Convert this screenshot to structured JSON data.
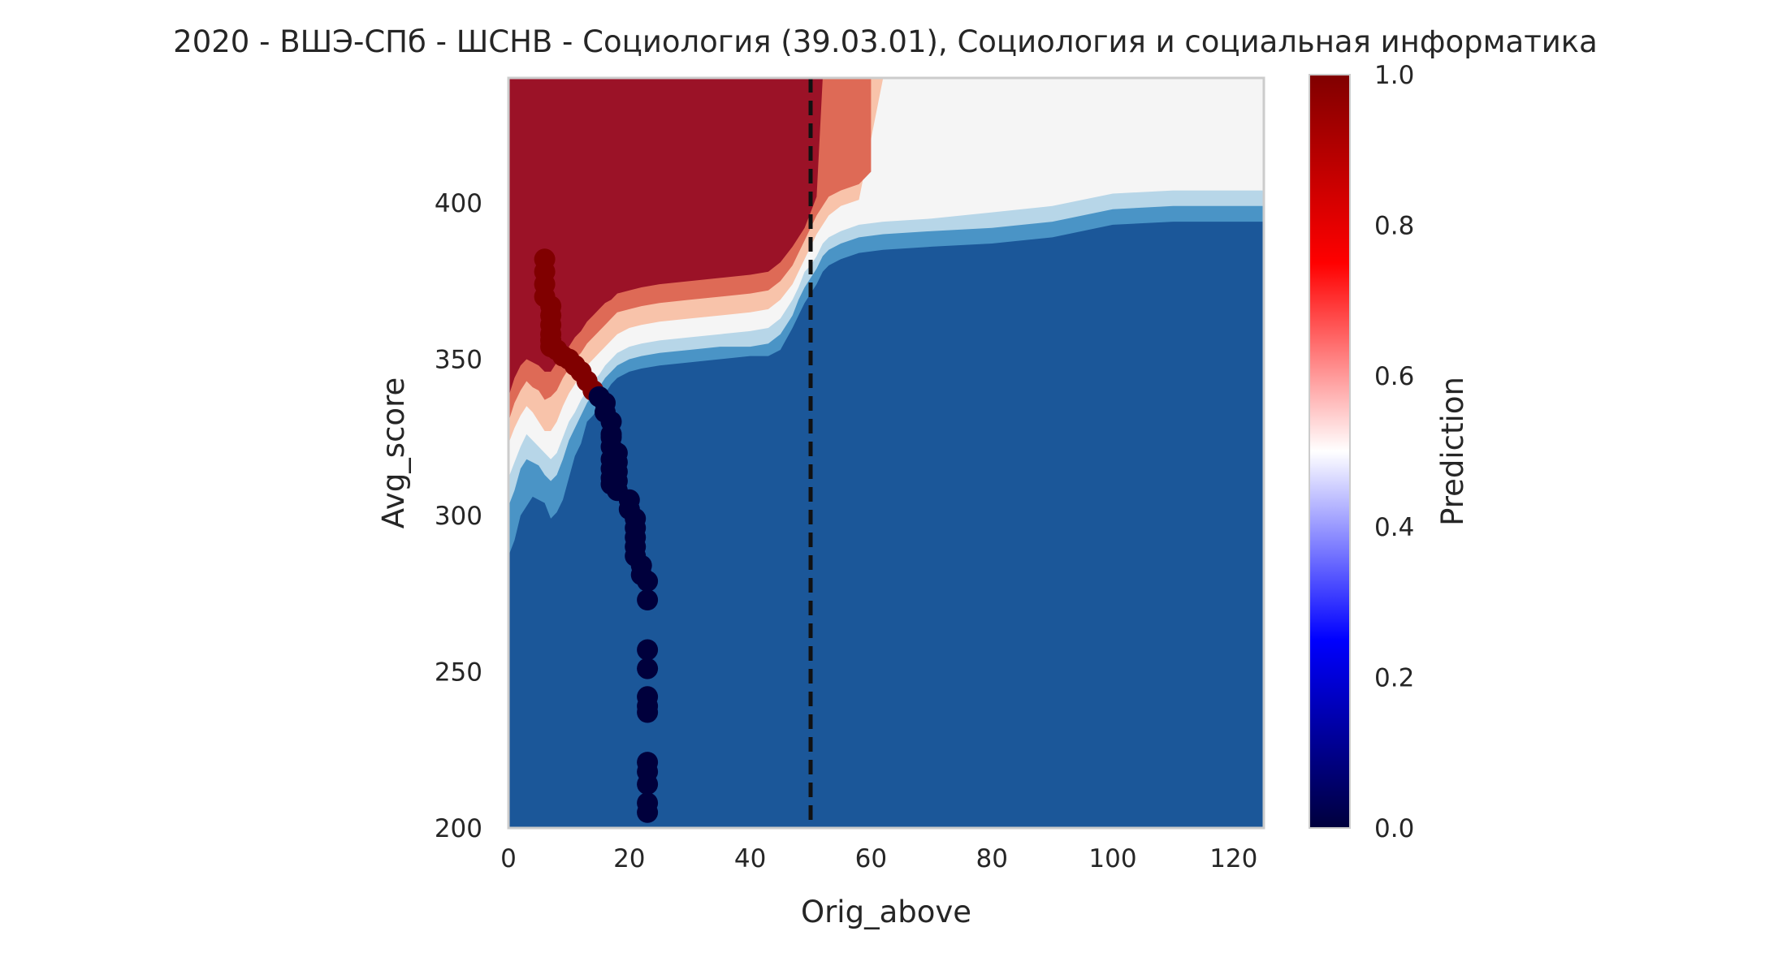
{
  "chart_data": {
    "type": "heatmap",
    "title": "2020 - ВШЭ-СПб - ШСНВ - Социология (39.03.01), Социология и социальная информатика",
    "xlabel": "Orig_above",
    "ylabel": "Avg_score",
    "xlim": [
      0,
      125
    ],
    "ylim": [
      200,
      440
    ],
    "xticks": [
      "0",
      "20",
      "40",
      "60",
      "80",
      "100",
      "120"
    ],
    "yticks": [
      "200",
      "250",
      "300",
      "350",
      "400"
    ],
    "grid": false,
    "reference_line": {
      "axis": "x",
      "value": 50,
      "style": "dashed",
      "color": "#111111"
    },
    "contour": {
      "colors": [
        "#1b5799",
        "#4a94c6",
        "#b7d6e8",
        "#f5f5f5",
        "#f8c3aa",
        "#de6a56",
        "#9b1227"
      ],
      "boundaries": [
        [
          [
            0,
            287
          ],
          [
            1,
            292
          ],
          [
            2,
            300
          ],
          [
            3,
            303
          ],
          [
            4,
            306
          ],
          [
            5,
            305
          ],
          [
            6,
            304
          ],
          [
            7,
            299
          ],
          [
            8,
            301
          ],
          [
            9,
            305
          ],
          [
            10,
            312
          ],
          [
            11,
            319
          ],
          [
            12,
            323
          ],
          [
            13,
            330
          ],
          [
            14,
            332
          ],
          [
            15,
            335
          ],
          [
            16,
            339
          ],
          [
            17,
            342
          ],
          [
            18,
            344
          ],
          [
            20,
            346
          ],
          [
            22,
            347
          ],
          [
            25,
            348
          ],
          [
            30,
            349
          ],
          [
            35,
            350
          ],
          [
            40,
            351
          ],
          [
            43,
            351
          ],
          [
            45,
            353
          ],
          [
            47,
            360
          ],
          [
            48,
            364
          ],
          [
            49,
            368
          ],
          [
            50,
            371
          ],
          [
            51,
            374
          ],
          [
            52,
            378
          ],
          [
            53,
            380
          ],
          [
            55,
            382
          ],
          [
            58,
            384
          ],
          [
            62,
            385
          ],
          [
            70,
            386
          ],
          [
            80,
            387
          ],
          [
            90,
            389
          ],
          [
            100,
            393
          ],
          [
            110,
            394
          ],
          [
            125,
            394
          ]
        ],
        [
          [
            0,
            303
          ],
          [
            1,
            308
          ],
          [
            2,
            315
          ],
          [
            3,
            318
          ],
          [
            4,
            317
          ],
          [
            5,
            316
          ],
          [
            6,
            313
          ],
          [
            7,
            311
          ],
          [
            8,
            313
          ],
          [
            9,
            318
          ],
          [
            10,
            324
          ],
          [
            11,
            328
          ],
          [
            12,
            332
          ],
          [
            13,
            336
          ],
          [
            14,
            339
          ],
          [
            15,
            341
          ],
          [
            16,
            344
          ],
          [
            17,
            346
          ],
          [
            18,
            348
          ],
          [
            20,
            350
          ],
          [
            22,
            351
          ],
          [
            25,
            352
          ],
          [
            30,
            353
          ],
          [
            35,
            354
          ],
          [
            40,
            354
          ],
          [
            43,
            355
          ],
          [
            45,
            358
          ],
          [
            47,
            364
          ],
          [
            48,
            369
          ],
          [
            49,
            373
          ],
          [
            50,
            376
          ],
          [
            51,
            379
          ],
          [
            52,
            383
          ],
          [
            53,
            385
          ],
          [
            55,
            387
          ],
          [
            58,
            389
          ],
          [
            62,
            390
          ],
          [
            70,
            391
          ],
          [
            80,
            392
          ],
          [
            90,
            394
          ],
          [
            100,
            398
          ],
          [
            110,
            399
          ],
          [
            125,
            399
          ]
        ],
        [
          [
            0,
            312
          ],
          [
            1,
            317
          ],
          [
            2,
            322
          ],
          [
            3,
            326
          ],
          [
            4,
            324
          ],
          [
            5,
            322
          ],
          [
            6,
            320
          ],
          [
            7,
            318
          ],
          [
            8,
            320
          ],
          [
            9,
            325
          ],
          [
            10,
            330
          ],
          [
            11,
            333
          ],
          [
            12,
            337
          ],
          [
            13,
            340
          ],
          [
            14,
            343
          ],
          [
            15,
            345
          ],
          [
            16,
            348
          ],
          [
            17,
            350
          ],
          [
            18,
            352
          ],
          [
            20,
            354
          ],
          [
            22,
            355
          ],
          [
            25,
            356
          ],
          [
            30,
            357
          ],
          [
            35,
            358
          ],
          [
            40,
            359
          ],
          [
            43,
            360
          ],
          [
            45,
            363
          ],
          [
            47,
            369
          ],
          [
            48,
            373
          ],
          [
            49,
            378
          ],
          [
            50,
            380
          ],
          [
            51,
            383
          ],
          [
            52,
            387
          ],
          [
            53,
            389
          ],
          [
            55,
            391
          ],
          [
            58,
            393
          ],
          [
            62,
            394
          ],
          [
            70,
            395
          ],
          [
            80,
            397
          ],
          [
            90,
            399
          ],
          [
            100,
            403
          ],
          [
            110,
            404
          ],
          [
            125,
            404
          ]
        ],
        [
          [
            0,
            323
          ],
          [
            1,
            328
          ],
          [
            2,
            332
          ],
          [
            3,
            335
          ],
          [
            4,
            333
          ],
          [
            5,
            330
          ],
          [
            6,
            327
          ],
          [
            7,
            327
          ],
          [
            8,
            330
          ],
          [
            9,
            335
          ],
          [
            10,
            339
          ],
          [
            11,
            342
          ],
          [
            12,
            345
          ],
          [
            13,
            348
          ],
          [
            14,
            350
          ],
          [
            15,
            352
          ],
          [
            16,
            354
          ],
          [
            17,
            356
          ],
          [
            18,
            358
          ],
          [
            20,
            360
          ],
          [
            22,
            361
          ],
          [
            25,
            362
          ],
          [
            30,
            363
          ],
          [
            35,
            364
          ],
          [
            40,
            365
          ],
          [
            43,
            366
          ],
          [
            45,
            369
          ],
          [
            47,
            374
          ],
          [
            48,
            378
          ],
          [
            49,
            382
          ],
          [
            50,
            386
          ],
          [
            51,
            390
          ],
          [
            52,
            393
          ],
          [
            53,
            396
          ],
          [
            55,
            399
          ],
          [
            58,
            401
          ],
          [
            62,
            440
          ]
        ],
        [
          [
            0,
            330
          ],
          [
            1,
            336
          ],
          [
            2,
            340
          ],
          [
            3,
            343
          ],
          [
            4,
            341
          ],
          [
            5,
            340
          ],
          [
            6,
            337
          ],
          [
            7,
            338
          ],
          [
            8,
            340
          ],
          [
            9,
            344
          ],
          [
            10,
            347
          ],
          [
            11,
            350
          ],
          [
            12,
            352
          ],
          [
            13,
            355
          ],
          [
            14,
            357
          ],
          [
            15,
            359
          ],
          [
            16,
            361
          ],
          [
            17,
            363
          ],
          [
            18,
            365
          ],
          [
            20,
            366
          ],
          [
            22,
            367
          ],
          [
            25,
            368
          ],
          [
            30,
            369
          ],
          [
            35,
            370
          ],
          [
            40,
            371
          ],
          [
            43,
            372
          ],
          [
            45,
            375
          ],
          [
            47,
            380
          ],
          [
            48,
            384
          ],
          [
            49,
            388
          ],
          [
            50,
            392
          ],
          [
            51,
            396
          ],
          [
            52,
            399
          ],
          [
            53,
            402
          ],
          [
            55,
            404
          ],
          [
            58,
            406
          ],
          [
            60,
            410
          ],
          [
            60,
            440
          ]
        ],
        [
          [
            0,
            338
          ],
          [
            1,
            344
          ],
          [
            2,
            348
          ],
          [
            3,
            350
          ],
          [
            4,
            349
          ],
          [
            5,
            348
          ],
          [
            6,
            346
          ],
          [
            7,
            346
          ],
          [
            8,
            349
          ],
          [
            9,
            352
          ],
          [
            10,
            354
          ],
          [
            11,
            357
          ],
          [
            12,
            359
          ],
          [
            13,
            362
          ],
          [
            14,
            364
          ],
          [
            15,
            366
          ],
          [
            16,
            368
          ],
          [
            17,
            369
          ],
          [
            18,
            371
          ],
          [
            20,
            372
          ],
          [
            22,
            373
          ],
          [
            25,
            374
          ],
          [
            30,
            375
          ],
          [
            35,
            376
          ],
          [
            40,
            377
          ],
          [
            43,
            378
          ],
          [
            45,
            381
          ],
          [
            47,
            386
          ],
          [
            48,
            389
          ],
          [
            49,
            392
          ],
          [
            50,
            397
          ],
          [
            51,
            402
          ],
          [
            52,
            440
          ]
        ]
      ]
    },
    "scatter": {
      "color_ref": "Prediction",
      "x": [
        6,
        6,
        6,
        6,
        7,
        7,
        7,
        7,
        7,
        7,
        8,
        9,
        10,
        11,
        12,
        13,
        14,
        15,
        16,
        16,
        17,
        17,
        17,
        17,
        17,
        17,
        17,
        17,
        18,
        18,
        18,
        18,
        18,
        20,
        20,
        21,
        21,
        21,
        21,
        21,
        22,
        22,
        23,
        23,
        23,
        23,
        23,
        23,
        23,
        23,
        23,
        23,
        23,
        23
      ],
      "y": [
        382,
        378,
        374,
        370,
        367,
        364,
        361,
        358,
        356,
        354,
        353,
        351,
        350,
        348,
        346,
        343,
        340,
        338,
        336,
        333,
        330,
        326,
        322,
        318,
        315,
        312,
        310,
        325,
        320,
        317,
        314,
        311,
        308,
        305,
        302,
        299,
        296,
        293,
        290,
        287,
        284,
        281,
        279,
        273,
        257,
        251,
        242,
        239,
        237,
        221,
        218,
        214,
        208,
        205
      ],
      "prediction": [
        1,
        1,
        1,
        1,
        1,
        1,
        1,
        1,
        1,
        1,
        1,
        1,
        1,
        1,
        1,
        1,
        1,
        0,
        0,
        0,
        0,
        0,
        0,
        0,
        0,
        0,
        0,
        0,
        0,
        0,
        0,
        0,
        0,
        0,
        0,
        0,
        0,
        0,
        0,
        0,
        0,
        0,
        0,
        0,
        0,
        0,
        0,
        0,
        0,
        0,
        0,
        0,
        0,
        0
      ]
    },
    "colorbar": {
      "label": "Prediction",
      "range": [
        0,
        1
      ],
      "ticks": [
        "0.0",
        "0.2",
        "0.4",
        "0.6",
        "0.8",
        "1.0"
      ],
      "colors": [
        "#00003c",
        "#0000ff",
        "#ffffff",
        "#ff0000",
        "#800000"
      ]
    },
    "point_colors": {
      "0": "#00003c",
      "1": "#800000"
    }
  }
}
